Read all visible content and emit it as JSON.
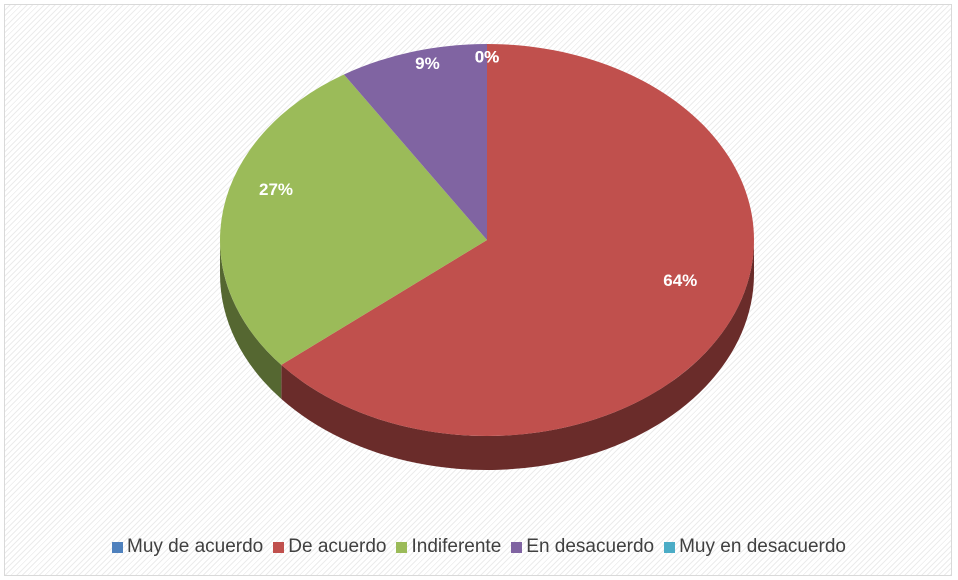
{
  "chart_data": {
    "type": "pie",
    "three_d": true,
    "categories": [
      "Muy de acuerdo",
      "De acuerdo",
      "Indiferente",
      "En desacuerdo",
      "Muy en desacuerdo"
    ],
    "values": [
      0,
      64,
      27,
      9,
      0
    ],
    "value_labels": [
      "0%",
      "64%",
      "27%",
      "9%",
      "0%"
    ],
    "colors": [
      "#4f81bd",
      "#c0504d",
      "#9bbb59",
      "#8064a2",
      "#4bacc6"
    ],
    "legend": "bottom"
  }
}
